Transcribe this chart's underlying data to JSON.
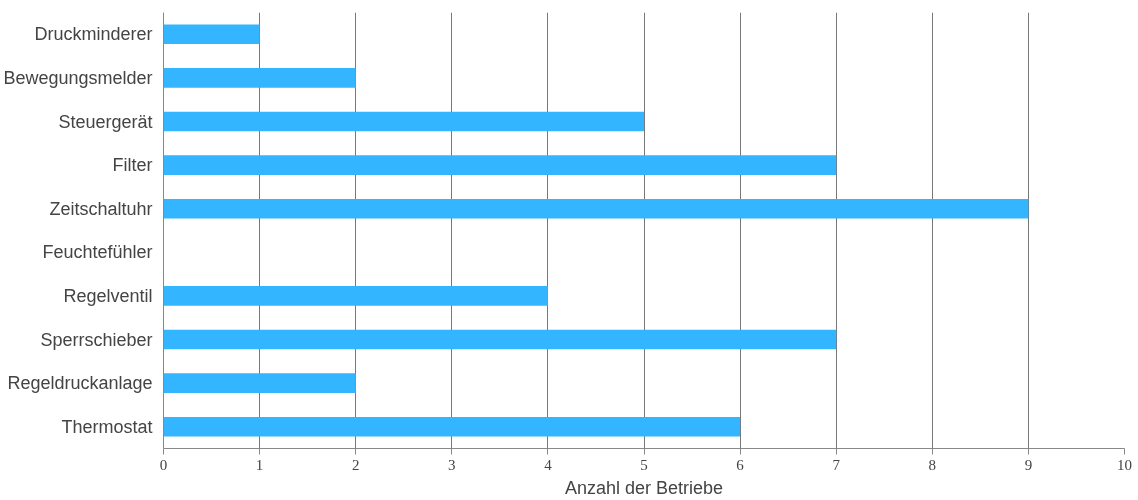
{
  "chart_data": {
    "type": "bar",
    "orientation": "horizontal",
    "xlabel": "Anzahl der Betriebe",
    "categories": [
      "Druckminderer",
      "Bewegungsmelder",
      "Steuergerät",
      "Filter",
      "Zeitschaltuhr",
      "Feuchtefühler",
      "Regelventil",
      "Sperrschieber",
      "Regeldruckanlage",
      "Thermostat"
    ],
    "values": [
      1,
      2,
      5,
      7,
      9,
      0,
      4,
      7,
      2,
      6
    ],
    "color": "#33b5ff",
    "xlim": [
      0,
      10
    ],
    "xticks": [
      0,
      1,
      2,
      3,
      4,
      5,
      6,
      7,
      8,
      9,
      10
    ],
    "grid": "x"
  }
}
